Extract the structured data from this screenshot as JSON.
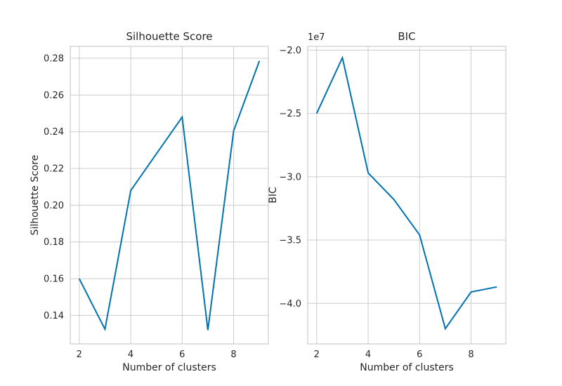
{
  "chart_data": [
    {
      "type": "line",
      "title": "Silhouette Score",
      "xlabel": "Number of clusters",
      "ylabel": "Silhouette Score",
      "x": [
        2,
        3,
        4,
        5,
        6,
        7,
        8,
        9
      ],
      "series": [
        {
          "values": [
            0.16,
            0.1325,
            0.208,
            0.228,
            0.248,
            0.132,
            0.2405,
            0.2785
          ]
        }
      ],
      "xlim": [
        1.65,
        9.35
      ],
      "ylim": [
        0.1245,
        0.2865
      ],
      "xticks": [
        2,
        4,
        6,
        8
      ],
      "xtick_labels": [
        "2",
        "4",
        "6",
        "8"
      ],
      "yticks": [
        0.14,
        0.16,
        0.18,
        0.2,
        0.22,
        0.24,
        0.26,
        0.28
      ],
      "ytick_labels": [
        "0.14",
        "0.16",
        "0.18",
        "0.20",
        "0.22",
        "0.24",
        "0.26",
        "0.28"
      ],
      "grid": true,
      "line_color": "#0072b2"
    },
    {
      "type": "line",
      "title": "BIC",
      "xlabel": "Number of clusters",
      "ylabel": "BIC",
      "axis_offset_label": "1e7",
      "x": [
        2,
        3,
        4,
        5,
        6,
        7,
        8,
        9
      ],
      "series": [
        {
          "values": [
            -2.5,
            -2.06,
            -2.97,
            -3.18,
            -3.46,
            -4.2,
            -3.91,
            -3.87
          ]
        }
      ],
      "xlim": [
        1.65,
        9.35
      ],
      "ylim": [
        -4.32,
        -1.97
      ],
      "xticks": [
        2,
        4,
        6,
        8
      ],
      "xtick_labels": [
        "2",
        "4",
        "6",
        "8"
      ],
      "yticks": [
        -2.0,
        -2.5,
        -3.0,
        -3.5,
        -4.0
      ],
      "ytick_labels": [
        "−2.0",
        "−2.5",
        "−3.0",
        "−3.5",
        "−4.0"
      ],
      "grid": true,
      "line_color": "#0072b2"
    }
  ]
}
